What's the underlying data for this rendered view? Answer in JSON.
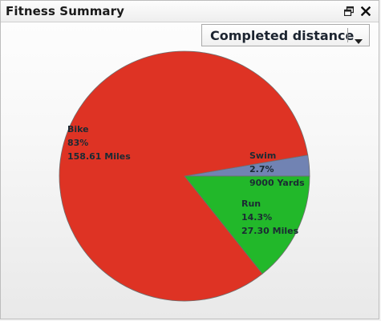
{
  "window": {
    "title": "Fitness Summary",
    "restore_icon": "restore-window-icon",
    "close_icon": "close-icon"
  },
  "metric_select": {
    "selected": "Completed distance",
    "arrow_icon": "dropdown-arrow-icon"
  },
  "chart_data": {
    "type": "pie",
    "slices": [
      {
        "name": "Bike",
        "percent": "83%",
        "value": 83.0,
        "amount": "158.61 Miles",
        "color": "#de3324"
      },
      {
        "name": "Swim",
        "percent": "2.7%",
        "value": 2.7,
        "amount": "9000 Yards",
        "color": "#7183b3"
      },
      {
        "name": "Run",
        "percent": "14.3%",
        "value": 14.3,
        "amount": "27.30 Miles",
        "color": "#22b82a"
      }
    ]
  }
}
